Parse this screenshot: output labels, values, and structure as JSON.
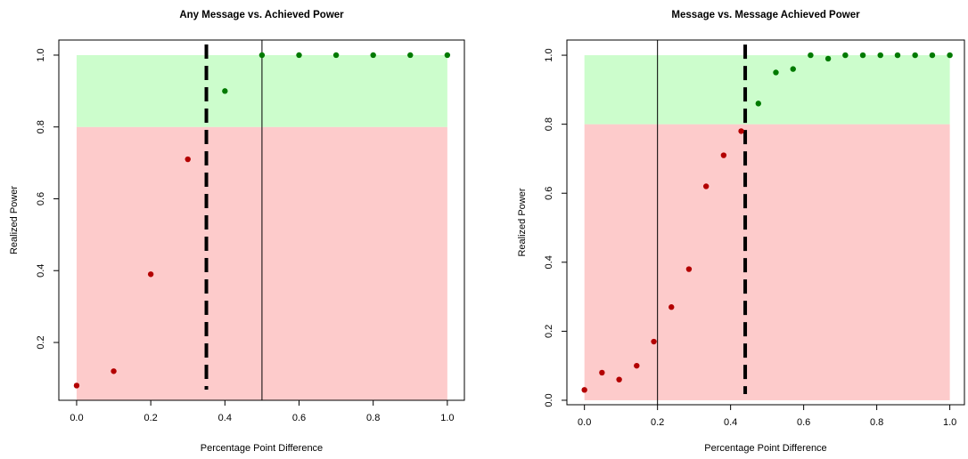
{
  "chart_data": [
    {
      "type": "scatter",
      "title": "Any Message vs. Achieved Power",
      "x_label": "Percentage Point Difference",
      "y_label": "Realized Power",
      "x": [
        0,
        0.1,
        0.2,
        0.3,
        0.4,
        0.5,
        0.6,
        0.7,
        0.8,
        0.9,
        1.0
      ],
      "values": [
        0.08,
        0.12,
        0.39,
        0.71,
        0.9,
        1.0,
        1.0,
        1.0,
        1.0,
        1.0,
        1.0
      ],
      "xlim": [
        -0.048,
        1.046
      ],
      "ylim": [
        0.039,
        1.042
      ],
      "xticks": [
        {
          "value": 0,
          "label": "0.0"
        },
        0.2,
        0.4,
        0.6,
        0.8,
        {
          "value": 1,
          "label": "1.0"
        }
      ],
      "yticks": [
        0.2,
        0.4,
        0.6,
        0.8,
        {
          "value": 1,
          "label": "1.0"
        }
      ],
      "bands": [
        {
          "from": 0.039,
          "to": 0.8,
          "fill": "#fdcbcb",
          "point_color": "#b30000"
        },
        {
          "from": 0.8,
          "to": 1.0,
          "fill": "#ccfdcc",
          "point_color": "#007a00"
        }
      ],
      "band_xlim": [
        0,
        1
      ],
      "vlines": [
        {
          "x": 0.35,
          "style": "dashed"
        },
        {
          "x": 0.5,
          "style": "solid"
        }
      ]
    },
    {
      "type": "scatter",
      "title": "Message vs. Message Achieved Power",
      "x_label": "Percentage Point Difference",
      "y_label": "Realized Power",
      "x": [
        0,
        0.048,
        0.095,
        0.143,
        0.19,
        0.238,
        0.286,
        0.333,
        0.381,
        0.429,
        0.476,
        0.524,
        0.571,
        0.619,
        0.667,
        0.714,
        0.762,
        0.81,
        0.857,
        0.905,
        0.952,
        1.0
      ],
      "values": [
        0.03,
        0.08,
        0.06,
        0.1,
        0.17,
        0.27,
        0.38,
        0.62,
        0.71,
        0.78,
        0.86,
        0.95,
        0.96,
        1.0,
        0.99,
        1.0,
        1.0,
        1.0,
        1.0,
        1.0,
        1.0,
        1.0
      ],
      "xlim": [
        -0.048,
        1.04
      ],
      "ylim": [
        -0.013,
        1.044
      ],
      "xticks": [
        {
          "value": 0,
          "label": "0.0"
        },
        0.2,
        0.4,
        0.6,
        0.8,
        {
          "value": 1,
          "label": "1.0"
        }
      ],
      "yticks": [
        {
          "value": 0,
          "label": "0.0"
        },
        0.2,
        0.4,
        0.6,
        0.8,
        {
          "value": 1,
          "label": "1.0"
        }
      ],
      "bands": [
        {
          "from": 0,
          "to": 0.8,
          "fill": "#fdcbcb",
          "point_color": "#b30000"
        },
        {
          "from": 0.8,
          "to": 1.0,
          "fill": "#ccfdcc",
          "point_color": "#007a00"
        }
      ],
      "band_xlim": [
        0,
        1
      ],
      "vlines": [
        {
          "x": 0.2,
          "style": "solid"
        },
        {
          "x": 0.44,
          "style": "dashed"
        }
      ]
    }
  ]
}
